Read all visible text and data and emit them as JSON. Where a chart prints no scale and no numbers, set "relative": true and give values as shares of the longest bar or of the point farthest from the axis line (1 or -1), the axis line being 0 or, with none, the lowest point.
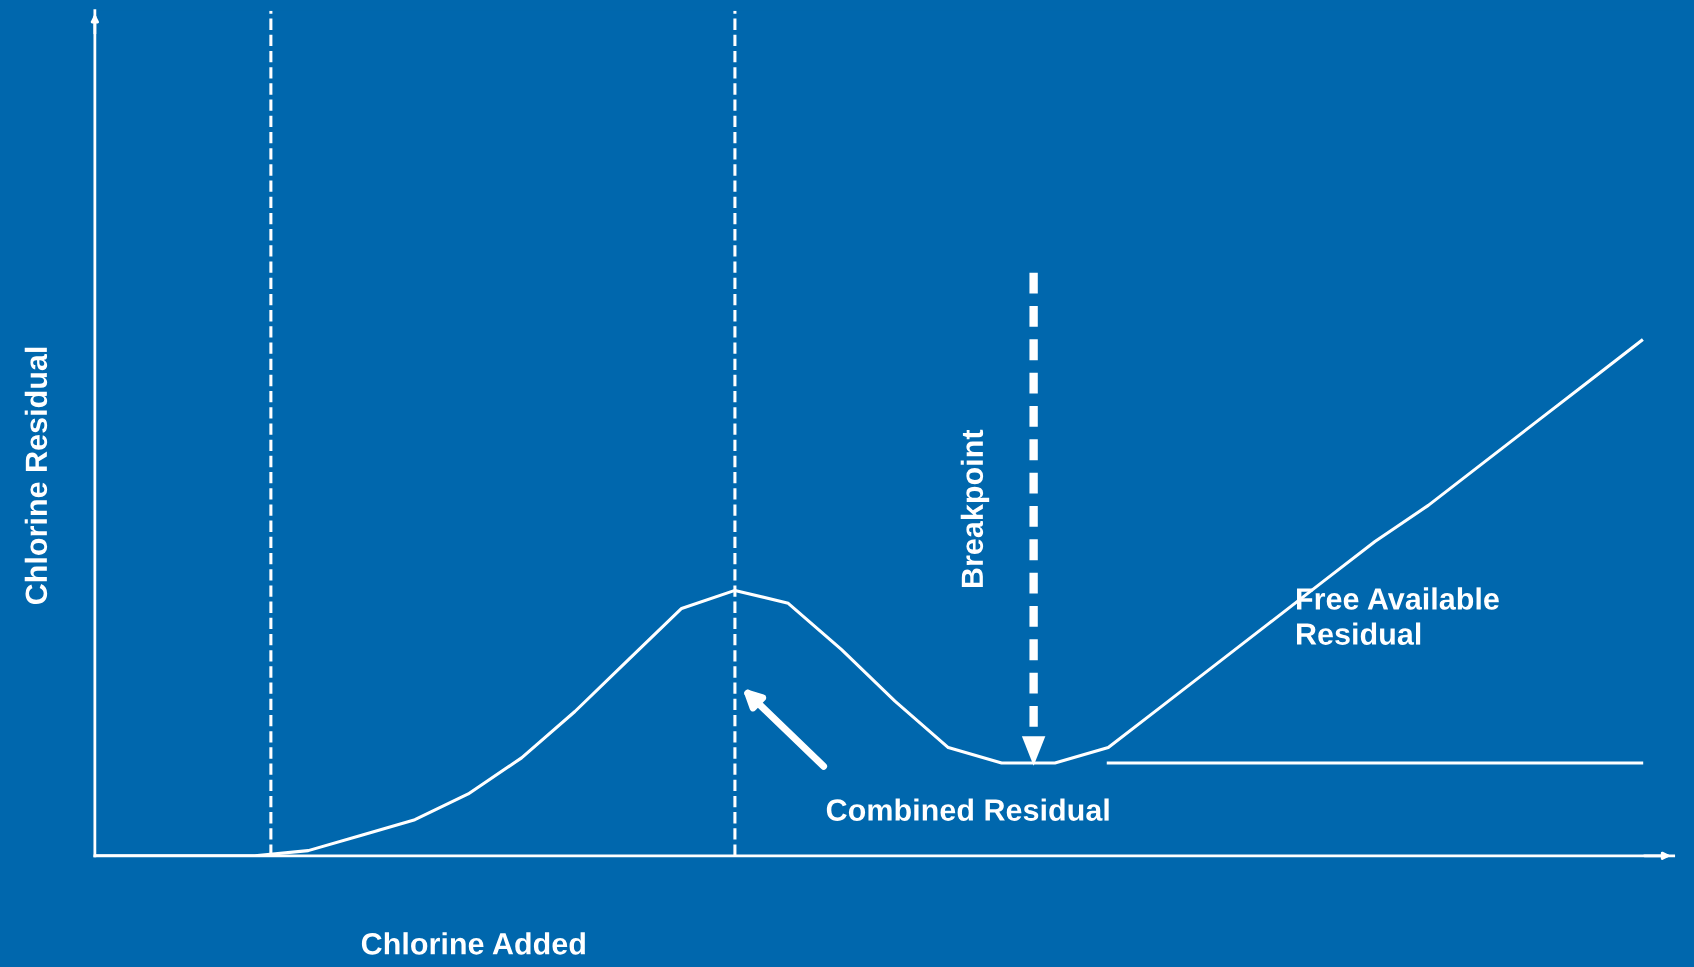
{
  "chart_data": {
    "type": "line",
    "relative": true,
    "xlabel": "Chlorine Added",
    "ylabel": "Chlorine Residual",
    "categories": [
      null,
      null,
      null,
      null,
      null,
      null,
      null,
      null,
      null,
      null,
      null,
      null,
      null,
      null,
      null,
      null,
      null,
      null,
      null,
      null,
      null,
      null,
      null,
      null,
      null,
      null,
      null,
      null,
      null,
      null
    ],
    "series": [
      {
        "color": "#ffffff",
        "values": [
          0,
          0,
          0,
          0,
          0.01,
          0.04,
          0.07,
          0.12,
          0.19,
          0.28,
          0.38,
          0.48,
          0.515,
          0.49,
          0.4,
          0.3,
          0.21,
          0.18,
          0.18,
          0.21,
          0.29,
          0.37,
          0.45,
          0.53,
          0.61,
          0.68,
          0.76,
          0.84,
          0.92,
          1.0
        ]
      },
      {
        "color": "#ffffff",
        "values": [
          null,
          null,
          null,
          null,
          null,
          null,
          null,
          null,
          null,
          null,
          null,
          null,
          null,
          null,
          null,
          null,
          null,
          null,
          null,
          0.18,
          0.18,
          0.18,
          0.18,
          0.18,
          0.18,
          0.18,
          0.18,
          0.18,
          0.18,
          0.18
        ]
      }
    ],
    "annotations": [
      "Combined Residual",
      "Free Available\nResidual",
      "Breakpoint"
    ],
    "marker": "none",
    "line_style": "solid"
  }
}
